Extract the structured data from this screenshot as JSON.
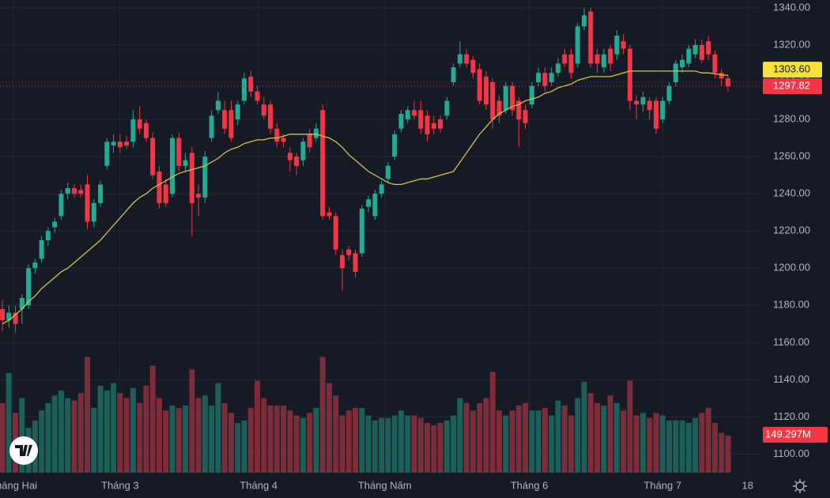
{
  "chart_data": {
    "type": "candlestick",
    "open": [
      1178,
      1172,
      1176,
      1178,
      1180,
      1200,
      1205,
      1215,
      1222,
      1228,
      1240,
      1243,
      1242,
      1245,
      1225,
      1235,
      1255,
      1266,
      1268,
      1268,
      1268,
      1280,
      1278,
      1270,
      1252,
      1245,
      1240,
      1270,
      1255,
      1262,
      1240,
      1238,
      1270,
      1285,
      1285,
      1285,
      1280,
      1290,
      1303,
      1295,
      1288,
      1288,
      1275,
      1270,
      1262,
      1260,
      1258,
      1272,
      1270,
      1285,
      1230,
      1228,
      1207,
      1210,
      1208,
      1208,
      1233,
      1228,
      1240,
      1248,
      1260,
      1275,
      1280,
      1285,
      1285,
      1282,
      1278,
      1280,
      1282,
      1300,
      1310,
      1315,
      1312,
      1307,
      1303,
      1300,
      1290,
      1285,
      1298,
      1290,
      1285,
      1288,
      1300,
      1305,
      1300,
      1305,
      1315,
      1315,
      1310,
      1330,
      1338,
      1315,
      1308,
      1318,
      1315,
      1322,
      1318,
      1290,
      1288,
      1290,
      1290,
      1280,
      1290,
      1300,
      1308,
      1310,
      1315,
      1320,
      1322,
      1315,
      1305,
      1302
    ],
    "high": [
      1183,
      1180,
      1180,
      1186,
      1202,
      1205,
      1217,
      1222,
      1227,
      1242,
      1246,
      1245,
      1245,
      1250,
      1237,
      1247,
      1270,
      1272,
      1272,
      1271,
      1285,
      1287,
      1280,
      1273,
      1255,
      1248,
      1272,
      1273,
      1262,
      1265,
      1245,
      1263,
      1285,
      1295,
      1290,
      1290,
      1290,
      1305,
      1306,
      1298,
      1292,
      1290,
      1278,
      1272,
      1265,
      1262,
      1270,
      1275,
      1278,
      1288,
      1233,
      1230,
      1210,
      1212,
      1210,
      1234,
      1239,
      1242,
      1247,
      1257,
      1274,
      1285,
      1287,
      1290,
      1290,
      1285,
      1282,
      1282,
      1292,
      1310,
      1322,
      1318,
      1314,
      1310,
      1306,
      1302,
      1293,
      1300,
      1300,
      1292,
      1288,
      1300,
      1308,
      1308,
      1308,
      1313,
      1318,
      1318,
      1332,
      1340,
      1340,
      1318,
      1318,
      1320,
      1328,
      1326,
      1320,
      1293,
      1295,
      1292,
      1292,
      1292,
      1300,
      1312,
      1315,
      1320,
      1323,
      1323,
      1325,
      1317,
      1307,
      1304
    ],
    "low": [
      1166,
      1168,
      1165,
      1170,
      1178,
      1197,
      1203,
      1212,
      1219,
      1226,
      1237,
      1238,
      1238,
      1221,
      1222,
      1233,
      1253,
      1262,
      1262,
      1264,
      1265,
      1272,
      1268,
      1248,
      1232,
      1233,
      1238,
      1252,
      1252,
      1217,
      1228,
      1235,
      1268,
      1283,
      1272,
      1268,
      1277,
      1288,
      1292,
      1288,
      1280,
      1272,
      1265,
      1265,
      1252,
      1250,
      1255,
      1262,
      1268,
      1226,
      1226,
      1207,
      1188,
      1204,
      1195,
      1206,
      1230,
      1226,
      1238,
      1246,
      1258,
      1273,
      1278,
      1280,
      1272,
      1268,
      1272,
      1273,
      1280,
      1298,
      1308,
      1308,
      1302,
      1288,
      1285,
      1275,
      1278,
      1283,
      1282,
      1265,
      1275,
      1286,
      1298,
      1295,
      1298,
      1303,
      1308,
      1302,
      1308,
      1328,
      1308,
      1305,
      1305,
      1306,
      1312,
      1315,
      1285,
      1280,
      1284,
      1280,
      1272,
      1278,
      1288,
      1298,
      1305,
      1308,
      1313,
      1310,
      1312,
      1302,
      1298,
      1295
    ],
    "close": [
      1172,
      1176,
      1170,
      1184,
      1200,
      1203,
      1215,
      1220,
      1225,
      1240,
      1243,
      1240,
      1240,
      1225,
      1235,
      1245,
      1268,
      1268,
      1265,
      1266,
      1280,
      1275,
      1270,
      1250,
      1235,
      1235,
      1270,
      1255,
      1258,
      1235,
      1238,
      1260,
      1282,
      1290,
      1275,
      1270,
      1288,
      1302,
      1295,
      1290,
      1282,
      1275,
      1268,
      1268,
      1258,
      1255,
      1268,
      1265,
      1275,
      1228,
      1228,
      1210,
      1200,
      1207,
      1198,
      1232,
      1237,
      1240,
      1245,
      1255,
      1272,
      1283,
      1285,
      1282,
      1275,
      1272,
      1275,
      1275,
      1290,
      1308,
      1315,
      1310,
      1305,
      1290,
      1288,
      1280,
      1282,
      1298,
      1285,
      1280,
      1278,
      1298,
      1305,
      1298,
      1305,
      1310,
      1310,
      1305,
      1330,
      1336,
      1310,
      1310,
      1315,
      1310,
      1325,
      1318,
      1290,
      1288,
      1292,
      1285,
      1275,
      1290,
      1298,
      1310,
      1312,
      1318,
      1320,
      1312,
      1315,
      1305,
      1302,
      1297.82
    ],
    "ma": [
      1170,
      1172,
      1175,
      1178,
      1182,
      1185,
      1189,
      1192,
      1195,
      1198,
      1200,
      1203,
      1206,
      1209,
      1212,
      1215,
      1219,
      1223,
      1227,
      1231,
      1235,
      1238,
      1240,
      1243,
      1245,
      1247,
      1249,
      1251,
      1252,
      1253,
      1254,
      1255,
      1257,
      1259,
      1262,
      1264,
      1265,
      1267,
      1268,
      1269,
      1269,
      1270,
      1270,
      1271,
      1272,
      1272,
      1272,
      1272,
      1272,
      1271,
      1270,
      1268,
      1265,
      1261,
      1258,
      1255,
      1252,
      1250,
      1248,
      1246,
      1245,
      1245,
      1246,
      1247,
      1248,
      1248,
      1249,
      1250,
      1251,
      1252,
      1257,
      1262,
      1267,
      1272,
      1276,
      1280,
      1283,
      1285,
      1287,
      1288,
      1290,
      1291,
      1292,
      1294,
      1295,
      1297,
      1298,
      1299,
      1301,
      1302,
      1303,
      1303,
      1303,
      1303,
      1304,
      1305,
      1306,
      1306,
      1306,
      1306,
      1306,
      1306,
      1306,
      1306,
      1306,
      1306,
      1306,
      1305,
      1305,
      1304.5,
      1304,
      1303.6
    ],
    "volume": [
      280,
      400,
      240,
      300,
      180,
      210,
      250,
      280,
      310,
      330,
      300,
      290,
      320,
      465,
      260,
      350,
      330,
      360,
      320,
      300,
      340,
      280,
      350,
      430,
      300,
      250,
      270,
      260,
      270,
      415,
      300,
      310,
      270,
      360,
      280,
      240,
      200,
      210,
      260,
      370,
      300,
      270,
      270,
      270,
      250,
      230,
      220,
      240,
      260,
      465,
      360,
      310,
      230,
      250,
      260,
      260,
      230,
      210,
      220,
      220,
      230,
      250,
      230,
      230,
      220,
      200,
      190,
      200,
      210,
      230,
      300,
      280,
      250,
      280,
      300,
      405,
      250,
      230,
      250,
      270,
      280,
      250,
      250,
      260,
      230,
      290,
      270,
      230,
      300,
      365,
      320,
      280,
      270,
      310,
      280,
      250,
      370,
      230,
      240,
      220,
      240,
      230,
      210,
      210,
      210,
      200,
      220,
      240,
      260,
      200,
      160,
      149.297
    ],
    "volume_lim": [
      0,
      470
    ],
    "ylim": [
      1090,
      1344.2
    ],
    "yticks": [
      {
        "value": 1100,
        "label": "1100.00"
      },
      {
        "value": 1120,
        "label": "1120.00"
      },
      {
        "value": 1140,
        "label": "1140.00"
      },
      {
        "value": 1160,
        "label": "1160.00"
      },
      {
        "value": 1180,
        "label": "1180.00"
      },
      {
        "value": 1200,
        "label": "1200.00"
      },
      {
        "value": 1220,
        "label": "1220.00"
      },
      {
        "value": 1240,
        "label": "1240.00"
      },
      {
        "value": 1260,
        "label": "1260.00"
      },
      {
        "value": 1280,
        "label": "1280.00"
      },
      {
        "value": 1300,
        "label": "1300.00"
      },
      {
        "value": 1320,
        "label": "1320.00"
      },
      {
        "value": 1340,
        "label": "1340.00"
      }
    ],
    "xticks": [
      {
        "value": 1.7,
        "label": "Tháng Hai"
      },
      {
        "value": 18,
        "label": "Tháng 3"
      },
      {
        "value": 39.2,
        "label": "Tháng 4"
      },
      {
        "value": 58.5,
        "label": "Tháng Năm"
      },
      {
        "value": 80.6,
        "label": "Tháng 6"
      },
      {
        "value": 101,
        "label": "Tháng 7"
      },
      {
        "value": 114,
        "label": "18"
      }
    ],
    "last_close_label": "1297.82",
    "ma_label": "1303.60",
    "last_volume_label": "149.297M",
    "up_color": "#22ab94",
    "down_color": "#f23645",
    "up_volume_color": "#1c5f58",
    "down_volume_color": "#7d2d3a",
    "ma_color": "#d4c24a",
    "grid": true
  }
}
